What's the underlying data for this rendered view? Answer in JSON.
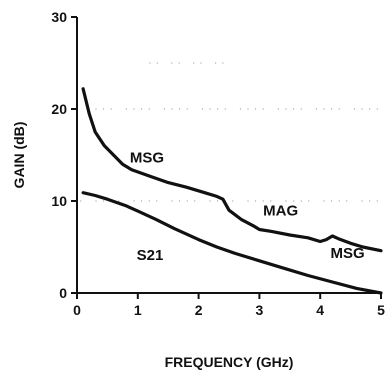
{
  "chart_data": {
    "type": "line",
    "title": "",
    "xlabel": "FREQUENCY (GHz)",
    "ylabel": "GAIN (dB)",
    "xlim": [
      0,
      5
    ],
    "ylim": [
      0,
      30
    ],
    "xticks": [
      "0",
      "1",
      "2",
      "3",
      "4",
      "5"
    ],
    "yticks": [
      "0",
      "10",
      "20",
      "30"
    ],
    "grid": "faint dotted",
    "series": [
      {
        "x": [
          0.1,
          0.2,
          0.3,
          0.45,
          0.6,
          0.75,
          0.9,
          1.2,
          1.5,
          1.8,
          2.1,
          2.3,
          2.4,
          2.5,
          2.7,
          2.9,
          3.0,
          3.2,
          3.5,
          3.8,
          4.0,
          4.1,
          4.2,
          4.3,
          4.5,
          4.7,
          5.0
        ],
        "y": [
          22.2,
          19.5,
          17.5,
          16.0,
          15.0,
          14.0,
          13.4,
          12.7,
          12.0,
          11.5,
          10.9,
          10.5,
          10.2,
          9.0,
          8.0,
          7.3,
          6.9,
          6.7,
          6.3,
          6.0,
          5.6,
          5.8,
          6.2,
          5.9,
          5.4,
          5.0,
          4.6
        ]
      },
      {
        "x": [
          0.1,
          0.3,
          0.5,
          0.8,
          1.0,
          1.3,
          1.6,
          2.0,
          2.3,
          2.6,
          3.0,
          3.4,
          3.8,
          4.2,
          4.6,
          5.0
        ],
        "y": [
          10.9,
          10.6,
          10.2,
          9.5,
          8.9,
          8.0,
          7.0,
          5.8,
          5.0,
          4.3,
          3.5,
          2.7,
          1.9,
          1.2,
          0.5,
          -0.1
        ]
      }
    ],
    "annotations": [
      {
        "text": "MSG",
        "x": 1.15,
        "y": 14.2
      },
      {
        "text": "MAG",
        "x": 3.35,
        "y": 8.4
      },
      {
        "text": "MSG",
        "x": 4.45,
        "y": 3.8
      },
      {
        "text": "S21",
        "x": 1.2,
        "y": 3.6
      }
    ]
  }
}
